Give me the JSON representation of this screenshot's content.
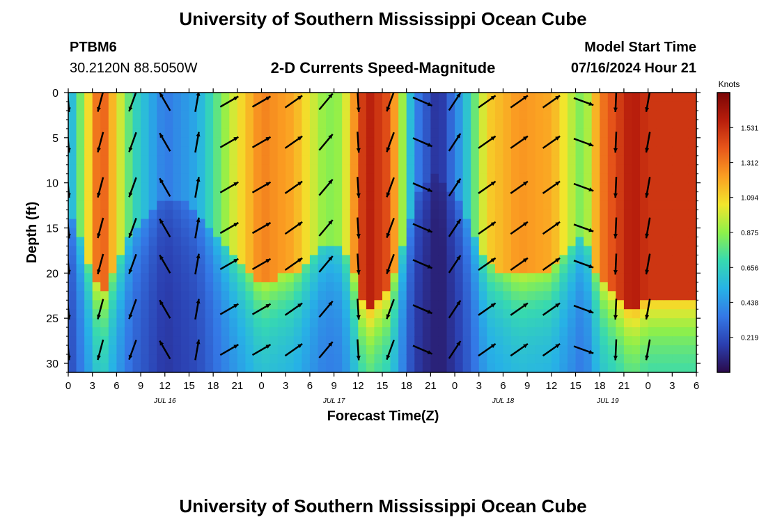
{
  "header": {
    "title": "University of Southern Mississippi Ocean Cube",
    "station": "PTBM6",
    "coords": "30.2120N  88.5050W",
    "plot_title": "2-D Currents Speed-Magnitude",
    "model_label": "Model Start Time",
    "model_time": "07/16/2024 Hour 21",
    "footer_title": "University of Southern Mississippi Ocean Cube"
  },
  "colors": {
    "scale": [
      "#2a0a4a",
      "#2b3fb0",
      "#3478e6",
      "#27b2e6",
      "#37d9b0",
      "#8ef04a",
      "#f2e52c",
      "#fb9f22",
      "#e8571a",
      "#b81e0c",
      "#7a0505"
    ],
    "arrow": "#000000"
  },
  "chart_data": {
    "type": "heatmap",
    "title": "2-D Currents Speed-Magnitude",
    "xlabel": "Forecast Time(Z)",
    "ylabel": "Depth (ft)",
    "x_tick_labels": [
      "0",
      "3",
      "6",
      "9",
      "12",
      "15",
      "18",
      "21",
      "0",
      "3",
      "6",
      "9",
      "12",
      "15",
      "18",
      "21",
      "0",
      "3",
      "6",
      "9",
      "12",
      "15",
      "18",
      "21",
      "0",
      "3",
      "6"
    ],
    "date_labels": [
      {
        "label": "JUL 16",
        "at_hour": 12
      },
      {
        "label": "JUL 17",
        "at_hour": 33
      },
      {
        "label": "JUL 18",
        "at_hour": 54
      },
      {
        "label": "JUL 19",
        "at_hour": 67
      }
    ],
    "xlim": [
      0,
      78
    ],
    "ylim": [
      0,
      31
    ],
    "y_inverted": true,
    "y_ticks": [
      0,
      5,
      10,
      15,
      20,
      25,
      30
    ],
    "colorbar": {
      "label": "Knots",
      "range": [
        0,
        1.75
      ],
      "tick_labels": [
        "1.531",
        "1.312",
        "1.094",
        "0.875",
        "0.656",
        "0.438",
        "0.219"
      ],
      "tick_values": [
        1.531,
        1.312,
        1.094,
        0.875,
        0.656,
        0.438,
        0.219
      ]
    },
    "speed_columns": [
      {
        "hour": 0,
        "speed": 0.45,
        "dir": 175
      },
      {
        "hour": 4,
        "speed": 1.45,
        "dir": 195
      },
      {
        "hour": 8,
        "speed": 0.7,
        "dir": 200
      },
      {
        "hour": 12,
        "speed": 0.35,
        "dir": 330
      },
      {
        "hour": 16,
        "speed": 0.5,
        "dir": 10
      },
      {
        "hour": 20,
        "speed": 0.95,
        "dir": 60
      },
      {
        "hour": 24,
        "speed": 1.3,
        "dir": 60
      },
      {
        "hour": 28,
        "speed": 1.2,
        "dir": 55
      },
      {
        "hour": 32,
        "speed": 0.85,
        "dir": 40
      },
      {
        "hour": 34,
        "speed": 0.9,
        "dir": 150
      },
      {
        "hour": 37,
        "speed": 1.6,
        "dir": 190
      },
      {
        "hour": 40,
        "speed": 1.4,
        "dir": 200
      },
      {
        "hour": 43,
        "speed": 0.4,
        "dir": 160
      },
      {
        "hour": 46,
        "speed": 0.1,
        "dir": 20
      },
      {
        "hour": 49,
        "speed": 0.5,
        "dir": 40
      },
      {
        "hour": 52,
        "speed": 1.1,
        "dir": 55
      },
      {
        "hour": 56,
        "speed": 1.25,
        "dir": 55
      },
      {
        "hour": 60,
        "speed": 1.2,
        "dir": 55
      },
      {
        "hour": 64,
        "speed": 0.8,
        "dir": 110
      },
      {
        "hour": 66,
        "speed": 1.3,
        "dir": 175
      },
      {
        "hour": 70,
        "speed": 1.6,
        "dir": 190
      },
      {
        "hour": 72,
        "speed": 1.5,
        "dir": 190
      }
    ]
  }
}
